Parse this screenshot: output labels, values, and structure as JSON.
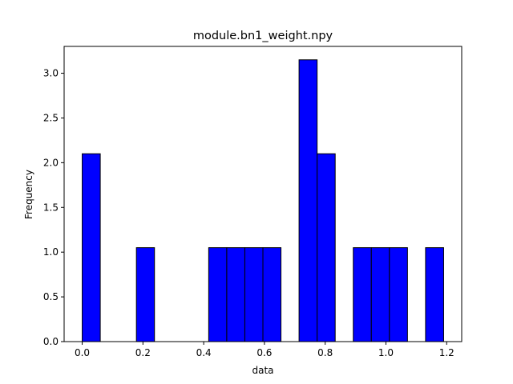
{
  "chart_data": {
    "type": "bar",
    "title": "module.bn1_weight.npy",
    "xlabel": "data",
    "ylabel": "Frequency",
    "xlim": [
      -0.0595,
      1.2495
    ],
    "ylim": [
      0,
      3.3
    ],
    "xticks": [
      0.0,
      0.2,
      0.4,
      0.6,
      0.8,
      1.0,
      1.2
    ],
    "xtick_labels": [
      "0.0",
      "0.2",
      "0.4",
      "0.6",
      "0.8",
      "1.0",
      "1.2"
    ],
    "yticks": [
      0.0,
      0.5,
      1.0,
      1.5,
      2.0,
      2.5,
      3.0
    ],
    "ytick_labels": [
      "0.0",
      "0.5",
      "1.0",
      "1.5",
      "2.0",
      "2.5",
      "3.0"
    ],
    "bins": [
      {
        "x0": 0.0,
        "x1": 0.0595,
        "value": 2.1
      },
      {
        "x0": 0.0595,
        "x1": 0.119,
        "value": 0
      },
      {
        "x0": 0.119,
        "x1": 0.1785,
        "value": 0
      },
      {
        "x0": 0.1785,
        "x1": 0.238,
        "value": 1.05
      },
      {
        "x0": 0.238,
        "x1": 0.2975,
        "value": 0
      },
      {
        "x0": 0.2975,
        "x1": 0.357,
        "value": 0
      },
      {
        "x0": 0.357,
        "x1": 0.4165,
        "value": 0
      },
      {
        "x0": 0.4165,
        "x1": 0.476,
        "value": 1.05
      },
      {
        "x0": 0.476,
        "x1": 0.5355,
        "value": 1.05
      },
      {
        "x0": 0.5355,
        "x1": 0.595,
        "value": 1.05
      },
      {
        "x0": 0.595,
        "x1": 0.6545,
        "value": 1.05
      },
      {
        "x0": 0.6545,
        "x1": 0.714,
        "value": 0
      },
      {
        "x0": 0.714,
        "x1": 0.7735,
        "value": 3.15
      },
      {
        "x0": 0.7735,
        "x1": 0.833,
        "value": 2.1
      },
      {
        "x0": 0.833,
        "x1": 0.8925,
        "value": 0
      },
      {
        "x0": 0.8925,
        "x1": 0.952,
        "value": 1.05
      },
      {
        "x0": 0.952,
        "x1": 1.0115,
        "value": 1.05
      },
      {
        "x0": 1.0115,
        "x1": 1.071,
        "value": 1.05
      },
      {
        "x0": 1.071,
        "x1": 1.1305,
        "value": 0
      },
      {
        "x0": 1.1305,
        "x1": 1.19,
        "value": 1.05
      }
    ],
    "bar_color": "#0000ff",
    "edge_color": "#000000",
    "grid": false,
    "legend": "none"
  }
}
